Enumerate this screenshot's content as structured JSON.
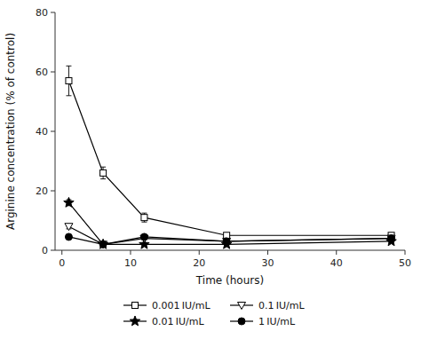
{
  "chart_data": {
    "type": "line",
    "title": "",
    "xlabel": "Time (hours)",
    "ylabel": "Arginine concentration (% of control)",
    "x": [
      1,
      6,
      12,
      24,
      48
    ],
    "xlim": [
      -1,
      50
    ],
    "ylim": [
      0,
      80
    ],
    "xticks": [
      0,
      10,
      20,
      30,
      40,
      50
    ],
    "yticks": [
      0,
      20,
      40,
      60,
      80
    ],
    "grid": false,
    "legend": "bottom",
    "series": [
      {
        "name": "0.001 IU/mL",
        "color": "#000000",
        "marker": "square-open",
        "line_style": "solid",
        "values": [
          57,
          26,
          11,
          5,
          5
        ],
        "yerr": [
          5,
          2,
          1.5,
          0.5,
          0.5
        ]
      },
      {
        "name": "0.01 IU/mL",
        "color": "#000000",
        "marker": "star",
        "line_style": "solid",
        "values": [
          16,
          2,
          2,
          2,
          3
        ],
        "yerr": [
          1,
          0.3,
          0.3,
          0.3,
          0.4
        ]
      },
      {
        "name": "0.1 IU/mL",
        "color": "#000000",
        "marker": "triangle-down-open",
        "line_style": "solid",
        "values": [
          8,
          2,
          4,
          3,
          4
        ],
        "yerr": [
          0.8,
          0.3,
          0.5,
          0.3,
          0.5
        ]
      },
      {
        "name": "1 IU/mL",
        "color": "#000000",
        "marker": "circle",
        "line_style": "solid",
        "values": [
          4.5,
          2,
          4.5,
          3,
          4
        ],
        "yerr": [
          0.5,
          0.3,
          0.5,
          0.3,
          0.5
        ]
      }
    ]
  }
}
